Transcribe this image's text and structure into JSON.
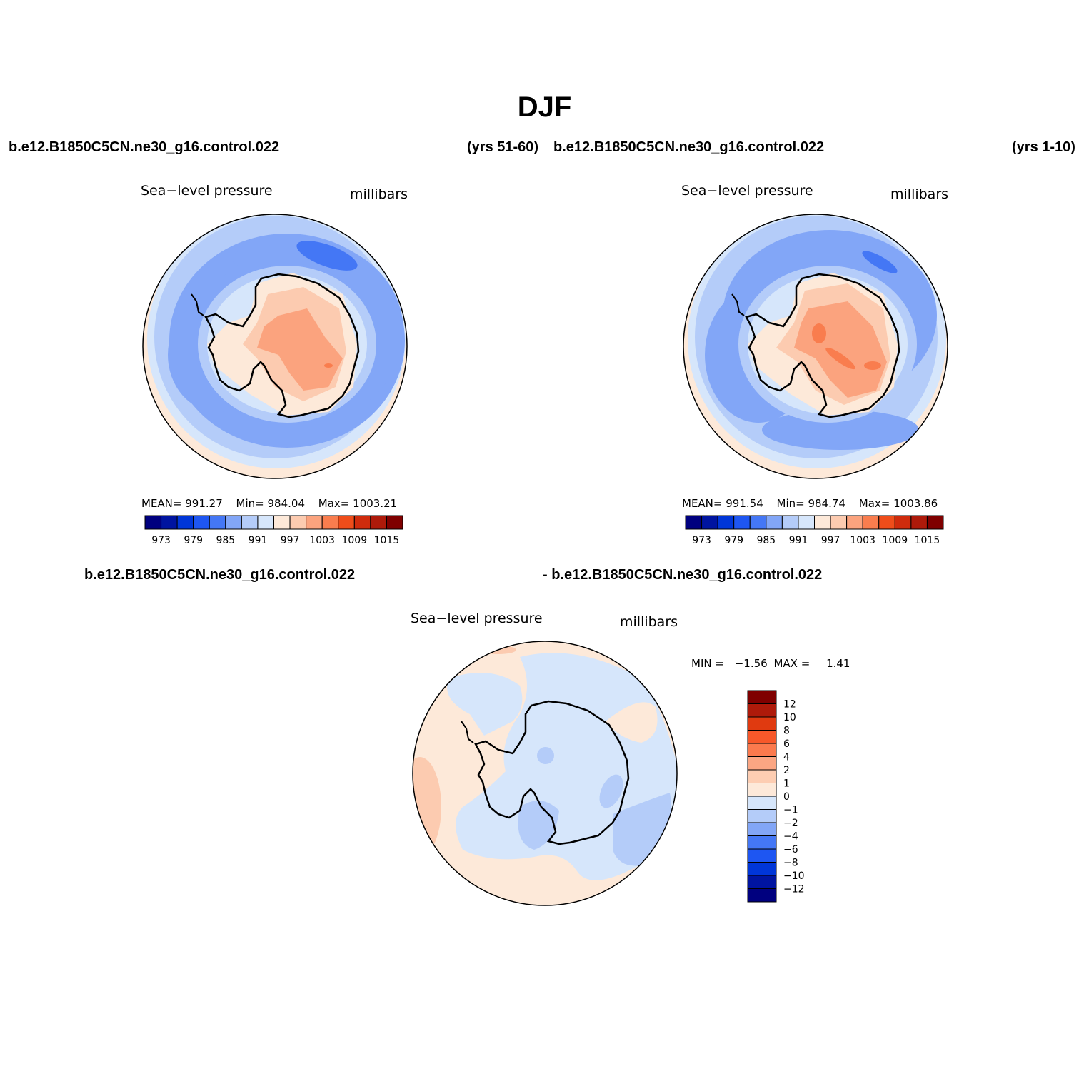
{
  "title": "DJF",
  "panels": [
    {
      "case_name": "b.e12.B1850C5CN.ne30_g16.control.022",
      "years": "(yrs 51-60)",
      "variable": "Sea−level pressure",
      "units": "millibars",
      "stats": {
        "mean_label": "MEAN=",
        "mean": "991.27",
        "min_label": "Min=",
        "min": "984.04",
        "max_label": "Max=",
        "max": "1003.21"
      }
    },
    {
      "case_name": "b.e12.B1850C5CN.ne30_g16.control.022",
      "years": "(yrs 1-10)",
      "variable": "Sea−level pressure",
      "units": "millibars",
      "stats": {
        "mean_label": "MEAN=",
        "mean": "991.54",
        "min_label": "Min=",
        "min": "984.74",
        "max_label": "Max=",
        "max": "1003.86"
      }
    }
  ],
  "diff_panel": {
    "case_a": "b.e12.B1850C5CN.ne30_g16.control.022",
    "case_b": "- b.e12.B1850C5CN.ne30_g16.control.022",
    "variable": "Sea−level pressure",
    "units": "millibars",
    "stats": {
      "min_label": "MIN =",
      "min": "−1.56",
      "max_label": "MAX =",
      "max": "1.41"
    }
  },
  "colorbar_abs": {
    "colors": [
      "#00007f",
      "#0014a0",
      "#0036d8",
      "#1e56f2",
      "#4477f5",
      "#82a6f7",
      "#b4ccf9",
      "#d6e6fb",
      "#fde9d9",
      "#fccbb0",
      "#fba37e",
      "#f97d4e",
      "#ef4d1a",
      "#cf2b0c",
      "#ae1a0a",
      "#7f0000"
    ],
    "labels": [
      "973",
      "979",
      "985",
      "991",
      "997",
      "1003",
      "1009",
      "1015"
    ]
  },
  "colorbar_diff": {
    "colors": [
      "#7f0000",
      "#ae1a0a",
      "#e03a10",
      "#f7582a",
      "#fb7a4e",
      "#fba683",
      "#fdcdb2",
      "#fde9d9",
      "#d6e6fb",
      "#b4ccf9",
      "#82a6f7",
      "#4477f5",
      "#1e56f2",
      "#0036d8",
      "#0014a0",
      "#00007f"
    ],
    "labels": [
      "12",
      "10",
      "8",
      "6",
      "4",
      "2",
      "1",
      "0",
      "−1",
      "−2",
      "−4",
      "−6",
      "−8",
      "−10",
      "−12"
    ]
  }
}
